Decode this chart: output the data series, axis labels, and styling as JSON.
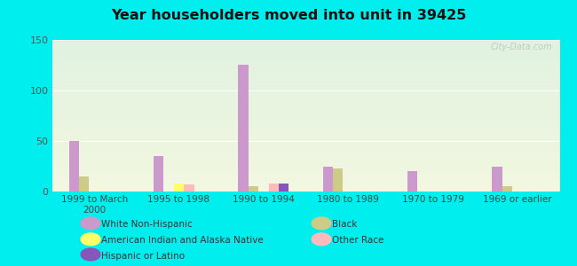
{
  "title": "Year householders moved into unit in 39425",
  "categories": [
    "1999 to March\n2000",
    "1995 to 1998",
    "1990 to 1994",
    "1980 to 1989",
    "1970 to 1979",
    "1969 or earlier"
  ],
  "series": {
    "White Non-Hispanic": [
      50,
      35,
      125,
      25,
      20,
      25
    ],
    "Black": [
      15,
      0,
      5,
      23,
      0,
      5
    ],
    "American Indian and Alaska Native": [
      0,
      8,
      0,
      0,
      0,
      0
    ],
    "Other Race": [
      0,
      7,
      8,
      0,
      0,
      0
    ],
    "Hispanic or Latino": [
      0,
      0,
      8,
      0,
      0,
      0
    ]
  },
  "colors": {
    "White Non-Hispanic": "#cc99cc",
    "Black": "#cccc88",
    "American Indian and Alaska Native": "#ffff66",
    "Other Race": "#ffbbbb",
    "Hispanic or Latino": "#8855bb"
  },
  "ylim": [
    0,
    150
  ],
  "yticks": [
    0,
    50,
    100,
    150
  ],
  "outer_bg": "#00eeee",
  "watermark": "City-Data.com",
  "legend_left": [
    [
      "White Non-Hispanic",
      "#cc99cc"
    ],
    [
      "American Indian and Alaska Native",
      "#ffff66"
    ],
    [
      "Hispanic or Latino",
      "#8855bb"
    ]
  ],
  "legend_right": [
    [
      "Black",
      "#cccc88"
    ],
    [
      "Other Race",
      "#ffbbbb"
    ]
  ]
}
